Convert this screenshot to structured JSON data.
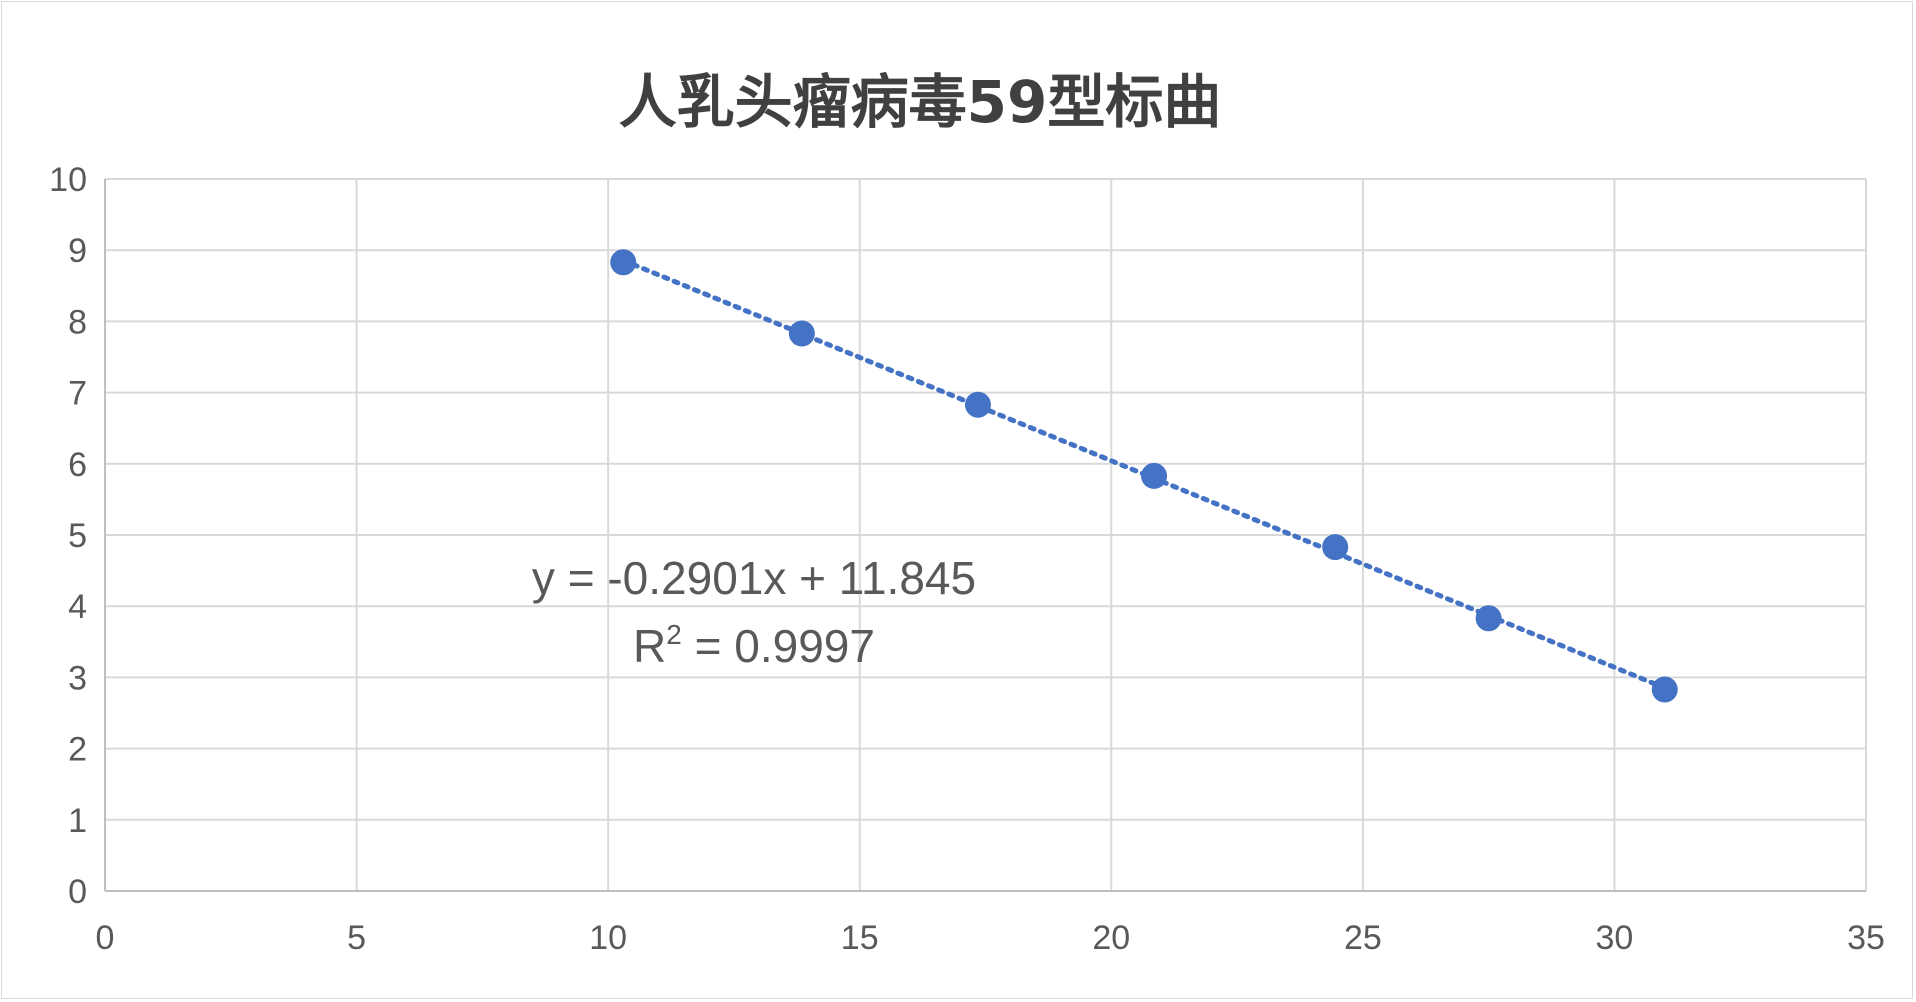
{
  "chart_data": {
    "type": "scatter",
    "title": "人乳头瘤病毒59型标曲",
    "xlim": [
      0,
      35
    ],
    "ylim": [
      0,
      10
    ],
    "x_ticks": [
      "0",
      "5",
      "10",
      "15",
      "20",
      "25",
      "30",
      "35"
    ],
    "y_ticks": [
      "0",
      "1",
      "2",
      "3",
      "4",
      "5",
      "6",
      "7",
      "8",
      "9",
      "10"
    ],
    "grid": true,
    "legend": "none",
    "series": [
      {
        "points": [
          {
            "x": 10.3,
            "y": 8.83
          },
          {
            "x": 13.85,
            "y": 7.83
          },
          {
            "x": 17.35,
            "y": 6.83
          },
          {
            "x": 20.85,
            "y": 5.83
          },
          {
            "x": 24.45,
            "y": 4.83
          },
          {
            "x": 27.5,
            "y": 3.83
          },
          {
            "x": 31.0,
            "y": 2.83
          }
        ],
        "color": "#4472c4",
        "trendline": {
          "type": "linear",
          "style": "dotted",
          "slope": -0.2901,
          "intercept": 11.845,
          "equation_label": "y = -0.2901x + 11.845",
          "r2_prefix": "R",
          "r2_sup": "2",
          "r2_value": " = 0.9997"
        }
      }
    ],
    "colors": {
      "marker": "#4472c4",
      "grid": "#d9d9d9",
      "text": "#595959",
      "title": "#404040"
    }
  }
}
